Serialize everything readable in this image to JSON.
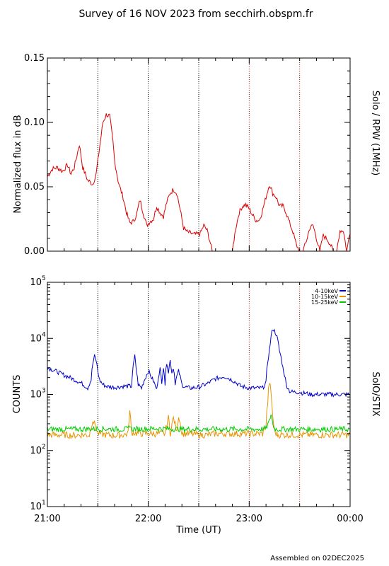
{
  "title": "Survey of 16 NOV 2023 from secchirh.obspm.fr",
  "footer": "Assembled on 02DEC2025",
  "x_axis": {
    "label": "Time (UT)",
    "range": [
      "21:00",
      "00:00"
    ],
    "ticks": [
      "21:00",
      "22:00",
      "23:00",
      "00:00"
    ],
    "dotted_marker_times": [
      "21:30",
      "22:00",
      "22:30",
      "23:00",
      "23:30"
    ]
  },
  "colors": {
    "rpw": "#dd0000",
    "stix_4_10": "#0000cc",
    "stix_10_15": "#e69500",
    "stix_15_25": "#00cc00",
    "marker_black": "#000000",
    "marker_red": "#cc0000"
  },
  "chart_data": [
    {
      "type": "line",
      "panel": "top",
      "instrument": "Solo / RPW (1MHz)",
      "ylabel": "Normalized flux in dB",
      "ylim": [
        0,
        0.15
      ],
      "yticks": [
        "0.00",
        "0.05",
        "0.10",
        "0.15"
      ],
      "series": [
        {
          "color": "#dd0000",
          "x_minutes_after_2100": [
            0,
            3,
            6,
            9,
            12,
            14,
            16,
            19,
            21,
            24,
            27,
            29,
            31,
            33,
            35,
            37,
            39,
            40,
            42,
            43,
            45,
            47,
            49,
            51,
            53,
            55,
            57,
            59,
            61,
            63,
            65,
            67,
            69,
            71,
            73,
            75,
            77,
            79,
            81,
            83,
            85,
            87,
            89,
            91,
            93,
            95,
            97,
            98,
            100,
            101,
            103,
            105,
            108,
            110,
            112,
            114,
            116,
            118,
            120,
            122,
            124,
            126,
            128,
            130,
            132,
            134,
            136,
            138,
            140,
            142,
            144,
            146,
            148,
            150,
            152,
            154,
            156,
            158,
            160,
            162,
            164,
            166,
            168,
            170,
            172,
            174,
            176,
            178,
            180
          ],
          "values": [
            0.058,
            0.064,
            0.065,
            0.062,
            0.067,
            0.06,
            0.065,
            0.083,
            0.065,
            0.055,
            0.052,
            0.06,
            0.08,
            0.1,
            0.106,
            0.105,
            0.085,
            0.07,
            0.055,
            0.05,
            0.042,
            0.03,
            0.022,
            0.023,
            0.028,
            0.04,
            0.03,
            0.02,
            0.023,
            0.025,
            0.035,
            0.03,
            0.027,
            0.038,
            0.045,
            0.048,
            0.045,
            0.032,
            0.018,
            0.015,
            0.014,
            0.013,
            0.013,
            0.014,
            0.02,
            0.016,
            0.006,
            0.0,
            0.0,
            0.0,
            0.0,
            0.0,
            0.0,
            0.0,
            0.018,
            0.03,
            0.035,
            0.036,
            0.033,
            0.028,
            0.024,
            0.024,
            0.032,
            0.042,
            0.052,
            0.045,
            0.042,
            0.035,
            0.035,
            0.03,
            0.022,
            0.015,
            0.005,
            0.0,
            0.0,
            0.008,
            0.018,
            0.02,
            0.01,
            0.0,
            0.012,
            0.01,
            0.006,
            0.0,
            0.0,
            0.016,
            0.016,
            0.0,
            0.015
          ]
        }
      ]
    },
    {
      "type": "line",
      "panel": "bottom",
      "instrument": "SolO/STIX",
      "ylabel": "COUNTS",
      "yscale": "log",
      "ylim": [
        10,
        100000
      ],
      "yticks": [
        "10^1",
        "10^2",
        "10^3",
        "10^4",
        "10^5"
      ],
      "legend": "top-right",
      "series": [
        {
          "name": "4-10keV",
          "color": "#0000cc",
          "x_minutes_after_2100": [
            0,
            5,
            10,
            15,
            20,
            24,
            26,
            27,
            28,
            29,
            30,
            31,
            33,
            35,
            38,
            42,
            45,
            50,
            52,
            53,
            54,
            56,
            58,
            60,
            62,
            65,
            67,
            68,
            69,
            70,
            71,
            72,
            73,
            74,
            75,
            76,
            78,
            80,
            82,
            85,
            90,
            95,
            100,
            105,
            110,
            115,
            120,
            125,
            128,
            130,
            132,
            134,
            136,
            138,
            140,
            142,
            144,
            146,
            148,
            150,
            152,
            154,
            156,
            158,
            160,
            162,
            164,
            166,
            168,
            170,
            172,
            174,
            176,
            178,
            180
          ],
          "values": [
            3000,
            2600,
            2200,
            1900,
            1600,
            1300,
            1800,
            3500,
            4800,
            4000,
            2600,
            1800,
            1500,
            1400,
            1350,
            1350,
            1400,
            1400,
            4800,
            2500,
            1500,
            1300,
            1900,
            2600,
            2000,
            1200,
            2900,
            1500,
            3200,
            1500,
            3800,
            2500,
            4000,
            2500,
            3000,
            1600,
            2600,
            1500,
            1350,
            1300,
            1350,
            1550,
            1900,
            2100,
            1800,
            1400,
            1300,
            1300,
            1300,
            1600,
            6000,
            15000,
            12000,
            6000,
            3000,
            1500,
            1150,
            1100,
            1100,
            1100,
            1050,
            1050,
            1000,
            1000,
            1000,
            1000,
            1000,
            1000,
            1000,
            1000,
            1000,
            1000,
            1000,
            1000,
            1000
          ]
        },
        {
          "name": "10-15keV",
          "color": "#e69500",
          "x_minutes_after_2100": [
            0,
            5,
            10,
            15,
            20,
            25,
            27,
            28,
            30,
            35,
            40,
            45,
            48,
            49,
            50,
            55,
            60,
            65,
            70,
            72,
            73,
            75,
            77,
            78,
            80,
            85,
            90,
            95,
            100,
            110,
            120,
            125,
            128,
            130,
            131,
            132,
            133,
            134,
            135,
            136,
            137,
            138,
            140,
            145,
            150,
            155,
            160,
            165,
            170,
            175,
            180
          ],
          "values": [
            190,
            190,
            190,
            185,
            190,
            190,
            350,
            300,
            200,
            190,
            185,
            190,
            200,
            500,
            210,
            200,
            200,
            200,
            200,
            380,
            200,
            380,
            200,
            420,
            200,
            200,
            190,
            190,
            200,
            200,
            200,
            200,
            200,
            280,
            700,
            1700,
            1000,
            400,
            220,
            200,
            190,
            190,
            190,
            190,
            190,
            190,
            190,
            190,
            190,
            190,
            190
          ]
        },
        {
          "name": "15-25keV",
          "color": "#00cc00",
          "x_minutes_after_2100": [
            0,
            10,
            20,
            30,
            40,
            48,
            49,
            50,
            60,
            70,
            80,
            90,
            100,
            110,
            120,
            125,
            130,
            132,
            133,
            134,
            135,
            136,
            140,
            150,
            160,
            170,
            180
          ],
          "values": [
            240,
            240,
            240,
            245,
            240,
            240,
            290,
            240,
            245,
            245,
            240,
            240,
            240,
            240,
            240,
            240,
            245,
            330,
            450,
            300,
            250,
            240,
            240,
            240,
            240,
            240,
            240
          ]
        }
      ]
    }
  ]
}
